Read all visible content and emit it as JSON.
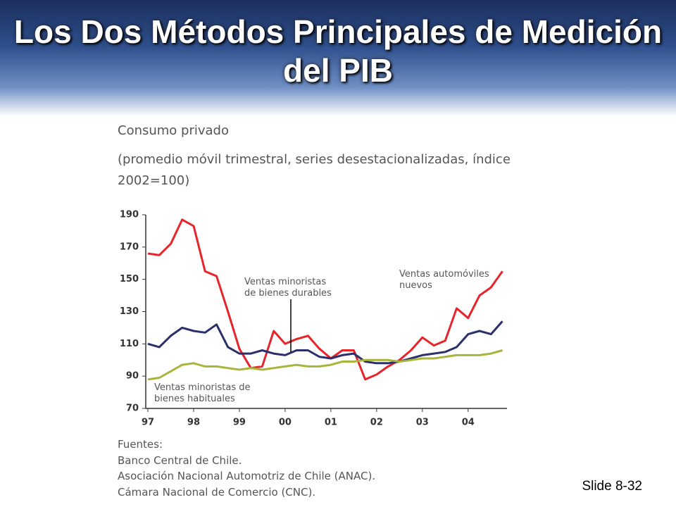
{
  "slide": {
    "title": "Los Dos Métodos Principales de Medición del PIB",
    "number": "Slide 8-32"
  },
  "chart_data": {
    "type": "line",
    "title": "Consumo privado",
    "subtitle": "(promedio móvil trimestral, series desestacionalizadas, índice 2002=100)",
    "x": [
      1997,
      1997.25,
      1997.5,
      1997.75,
      1998,
      1998.25,
      1998.5,
      1998.75,
      1999,
      1999.25,
      1999.5,
      1999.75,
      2000,
      2000.25,
      2000.5,
      2000.75,
      2001,
      2001.25,
      2001.5,
      2001.75,
      2002,
      2002.25,
      2002.5,
      2002.75,
      2003,
      2003.25,
      2003.5,
      2003.75,
      2004,
      2004.25,
      2004.5,
      2004.75
    ],
    "series": [
      {
        "name": "Ventas automóviles nuevos",
        "color": "#e8242b",
        "values": [
          166,
          165,
          172,
          187,
          183,
          155,
          152,
          130,
          107,
          95,
          96,
          118,
          110,
          113,
          115,
          107,
          101,
          106,
          106,
          88,
          91,
          96,
          100,
          106,
          114,
          109,
          112,
          132,
          126,
          140,
          145,
          155
        ]
      },
      {
        "name": "Ventas minoristas de bienes durables",
        "color": "#2b2f6b",
        "values": [
          110,
          108,
          115,
          120,
          118,
          117,
          122,
          108,
          104,
          104,
          106,
          104,
          103,
          106,
          106,
          102,
          101,
          103,
          104,
          99,
          98,
          98,
          99,
          101,
          103,
          104,
          105,
          108,
          116,
          118,
          116,
          124
        ]
      },
      {
        "name": "Ventas minoristas de bienes habituales",
        "color": "#a8b53a",
        "values": [
          88,
          89,
          93,
          97,
          98,
          96,
          96,
          95,
          94,
          95,
          94,
          95,
          96,
          97,
          96,
          96,
          97,
          99,
          99,
          100,
          100,
          100,
          99,
          100,
          101,
          101,
          102,
          103,
          103,
          103,
          104,
          106
        ]
      }
    ],
    "annotations": [
      {
        "lines": [
          "Ventas automóviles",
          "nuevos"
        ]
      },
      {
        "lines": [
          "Ventas minoristas",
          "de bienes durables"
        ]
      },
      {
        "lines": [
          "Ventas minoristas de",
          "bienes habituales"
        ]
      }
    ],
    "xlim": [
      1997,
      2004.85
    ],
    "xticks": [
      {
        "value": 1997,
        "label": "97"
      },
      {
        "value": 1998,
        "label": "98"
      },
      {
        "value": 1999,
        "label": "99"
      },
      {
        "value": 2000,
        "label": "00"
      },
      {
        "value": 2001,
        "label": "01"
      },
      {
        "value": 2002,
        "label": "02"
      },
      {
        "value": 2003,
        "label": "03"
      },
      {
        "value": 2004,
        "label": "04"
      }
    ],
    "ylim": [
      70,
      190
    ],
    "yticks": [
      70,
      90,
      110,
      130,
      150,
      170,
      190
    ],
    "grid": false,
    "sources": {
      "title": "Fuentes:",
      "items": [
        "Banco Central de Chile.",
        "Asociación Nacional Automotriz de Chile (ANAC).",
        "Cámara Nacional de Comercio (CNC)."
      ]
    }
  }
}
